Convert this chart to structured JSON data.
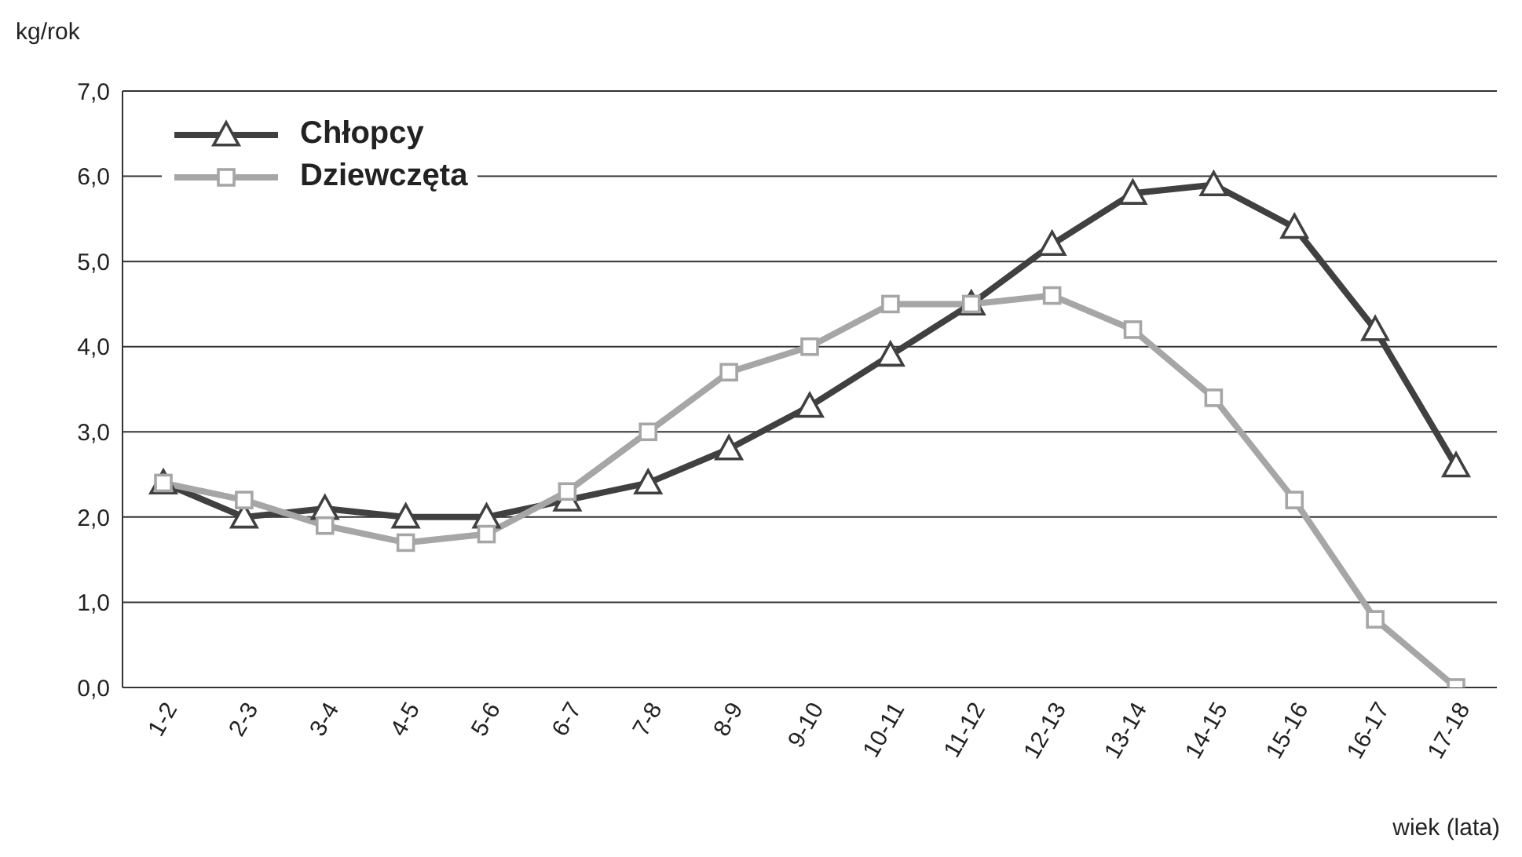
{
  "chart_data": {
    "type": "line",
    "ylabel": "kg/rok",
    "xlabel": "wiek (lata)",
    "categories": [
      "1-2",
      "2-3",
      "3-4",
      "4-5",
      "5-6",
      "6-7",
      "7-8",
      "8-9",
      "9-10",
      "10-11",
      "11-12",
      "12-13",
      "13-14",
      "14-15",
      "15-16",
      "16-17",
      "17-18"
    ],
    "series": [
      {
        "name": "Chłopcy",
        "color": "#404040",
        "marker": "triangle",
        "values": [
          2.4,
          2.0,
          2.1,
          2.0,
          2.0,
          2.2,
          2.4,
          2.8,
          3.3,
          3.9,
          4.5,
          5.2,
          5.8,
          5.9,
          5.4,
          4.2,
          2.6
        ]
      },
      {
        "name": "Dziewczęta",
        "color": "#a6a6a6",
        "marker": "square",
        "values": [
          2.4,
          2.2,
          1.9,
          1.7,
          1.8,
          2.3,
          3.0,
          3.7,
          4.0,
          4.5,
          4.5,
          4.6,
          4.2,
          3.4,
          2.2,
          0.8,
          0.0
        ]
      }
    ],
    "ylim": [
      0,
      7
    ],
    "yticks": [
      {
        "value": 0,
        "label": "0,0"
      },
      {
        "value": 1,
        "label": "1,0"
      },
      {
        "value": 2,
        "label": "2,0"
      },
      {
        "value": 3,
        "label": "3,0"
      },
      {
        "value": 4,
        "label": "4,0"
      },
      {
        "value": 5,
        "label": "5,0"
      },
      {
        "value": 6,
        "label": "6,0"
      },
      {
        "value": 7,
        "label": "7,0"
      }
    ],
    "grid": "y",
    "legend": "top left",
    "line_style": "solid"
  }
}
